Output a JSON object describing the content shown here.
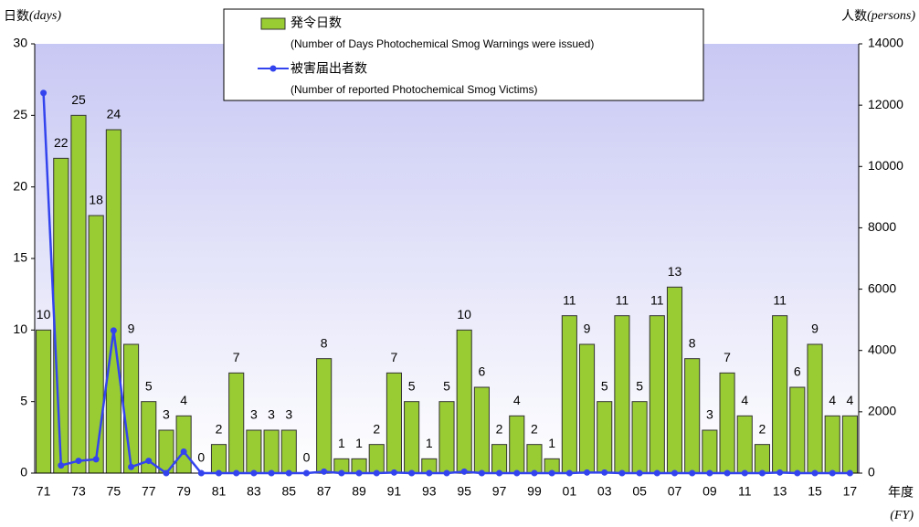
{
  "chart_data": {
    "type": "bar_line",
    "y_label": {
      "text": "日数",
      "unit": "(days)"
    },
    "y2_label": {
      "text": "人数",
      "unit": "(persons)"
    },
    "x_label": {
      "text": "年度",
      "unit": "(FY)"
    },
    "categories": [
      "71",
      null,
      "73",
      null,
      "75",
      null,
      "77",
      null,
      "79",
      null,
      "81",
      null,
      "83",
      null,
      "85",
      null,
      "87",
      null,
      "89",
      null,
      "91",
      null,
      "93",
      null,
      "95",
      null,
      "97",
      null,
      "99",
      null,
      "01",
      null,
      "03",
      null,
      "05",
      null,
      "07",
      null,
      "09",
      null,
      "11",
      null,
      "13",
      null,
      "15",
      null,
      "17"
    ],
    "series": [
      {
        "name": "発令日数",
        "description": "(Number of Days Photochemical Smog Warnings were issued)",
        "color": "#99cc33",
        "values": [
          10,
          22,
          25,
          18,
          24,
          9,
          5,
          3,
          4,
          0,
          2,
          7,
          3,
          3,
          3,
          0,
          8,
          1,
          1,
          2,
          7,
          5,
          1,
          5,
          10,
          6,
          2,
          4,
          2,
          1,
          11,
          9,
          5,
          11,
          5,
          11,
          13,
          8,
          3,
          7,
          4,
          2,
          11,
          6,
          9,
          4,
          4
        ]
      },
      {
        "name": "被害届出者数",
        "description": "(Number of reported Photochemical Smog Victims)",
        "color": "#3344ee",
        "axis": "y2",
        "values": [
          12400,
          250,
          400,
          450,
          4650,
          200,
          400,
          0,
          700,
          0,
          0,
          0,
          0,
          0,
          0,
          0,
          50,
          0,
          0,
          0,
          20,
          0,
          0,
          0,
          50,
          0,
          0,
          0,
          0,
          0,
          0,
          20,
          20,
          0,
          0,
          0,
          0,
          0,
          0,
          0,
          0,
          0,
          20,
          0,
          0,
          0,
          0
        ]
      }
    ],
    "ylim": [
      0,
      30
    ],
    "yticks": [
      0,
      5,
      10,
      15,
      20,
      25,
      30
    ],
    "y2lim": [
      0,
      14000
    ],
    "y2ticks": [
      0,
      2000,
      4000,
      6000,
      8000,
      10000,
      12000,
      14000
    ]
  }
}
